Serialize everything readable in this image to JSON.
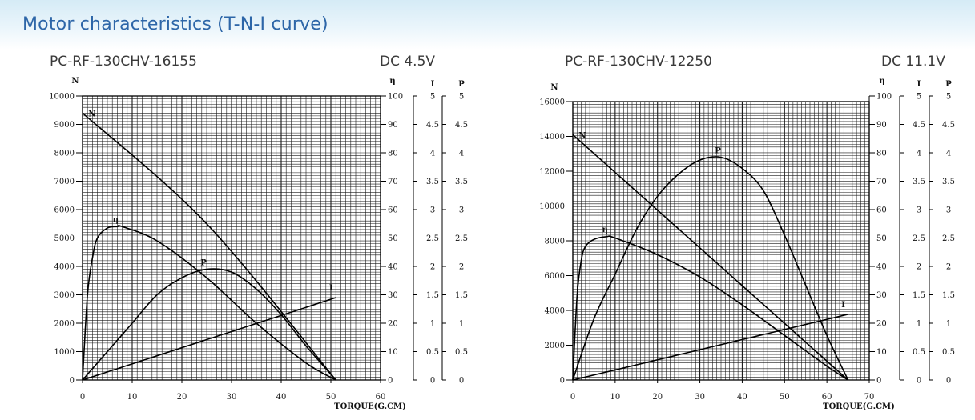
{
  "header": {
    "title": "Motor characteristics (T-N-I curve)"
  },
  "charts": [
    {
      "model": "PC-RF-130CHV-16155",
      "voltage": "DC 4.5V"
    },
    {
      "model": "PC-RF-130CHV-12250",
      "voltage": "DC 11.1V"
    }
  ],
  "chart_data": [
    {
      "type": "line",
      "title": "PC-RF-130CHV-16155",
      "subtitle": "DC 4.5V",
      "xlabel": "TORQUE(G.CM)",
      "ylabel": "N",
      "xlim": [
        0,
        60
      ],
      "x_ticks": [
        0,
        10,
        20,
        30,
        40,
        50,
        60
      ],
      "ylim": [
        0,
        10000
      ],
      "y_ticks": [
        0,
        1000,
        2000,
        3000,
        4000,
        5000,
        6000,
        7000,
        8000,
        9000,
        10000
      ],
      "right_axes": [
        {
          "label": "η",
          "ticks": [
            "0",
            "10",
            "20",
            "30",
            "40",
            "50",
            "60",
            "70",
            "80",
            "90",
            "100"
          ]
        },
        {
          "label": "I",
          "ticks": [
            "0",
            "0.5",
            "1",
            "1.5",
            "2",
            "2.5",
            "3",
            "3.5",
            "4",
            "4.5",
            "5"
          ]
        },
        {
          "label": "P",
          "ticks": [
            "0",
            "0.5",
            "1",
            "1.5",
            "2",
            "2.5",
            "3",
            "3.5",
            "4",
            "4.5",
            "5"
          ]
        }
      ],
      "grid": true,
      "series": [
        {
          "name": "N",
          "x": [
            0,
            25,
            51
          ],
          "y": [
            9400,
            5500,
            0
          ]
        },
        {
          "name": "η",
          "x": [
            0,
            1,
            2,
            3,
            5,
            7,
            8,
            15,
            25,
            35,
            45,
            51
          ],
          "y": [
            0,
            30,
            43,
            50,
            53.5,
            54,
            54,
            49,
            36,
            20,
            6,
            0
          ]
        },
        {
          "name": "P",
          "x": [
            0,
            5,
            10,
            15,
            20,
            25,
            30,
            35,
            40,
            45,
            50,
            51
          ],
          "y": [
            0,
            0.5,
            1.0,
            1.5,
            1.8,
            1.95,
            1.9,
            1.6,
            1.15,
            0.6,
            0.1,
            0
          ]
        },
        {
          "name": "I",
          "x": [
            0,
            51
          ],
          "y": [
            0,
            1.45
          ]
        }
      ]
    },
    {
      "type": "line",
      "title": "PC-RF-130CHV-12250",
      "subtitle": "DC 11.1V",
      "xlabel": "TORQUE(G.CM)",
      "ylabel": "N",
      "xlim": [
        0,
        70
      ],
      "x_ticks": [
        0,
        10,
        20,
        30,
        40,
        50,
        60,
        70
      ],
      "ylim": [
        0,
        16000
      ],
      "y_ticks": [
        0,
        2000,
        4000,
        6000,
        8000,
        10000,
        12000,
        14000,
        16000
      ],
      "right_axes": [
        {
          "label": "η",
          "ticks": [
            "0",
            "10",
            "20",
            "30",
            "40",
            "50",
            "60",
            "70",
            "80",
            "90",
            "100"
          ]
        },
        {
          "label": "I",
          "ticks": [
            "0",
            "0.5",
            "1",
            "1.5",
            "2",
            "2.5",
            "3",
            "3.5",
            "4",
            "4.5",
            "5"
          ]
        },
        {
          "label": "P",
          "ticks": [
            "0",
            "0.5",
            "1",
            "1.5",
            "2",
            "2.5",
            "3",
            "3.5",
            "4",
            "4.5",
            "5"
          ]
        }
      ],
      "grid": true,
      "series": [
        {
          "name": "N",
          "x": [
            0,
            65
          ],
          "y": [
            14100,
            0
          ]
        },
        {
          "name": "η",
          "x": [
            0,
            1,
            2,
            3,
            5,
            8,
            10,
            20,
            30,
            40,
            50,
            60,
            65
          ],
          "y": [
            0,
            30,
            43,
            48,
            50.5,
            51.5,
            51,
            45,
            37,
            27,
            16,
            5,
            0
          ]
        },
        {
          "name": "P",
          "x": [
            0,
            5,
            10,
            15,
            20,
            25,
            30,
            35,
            40,
            45,
            50,
            55,
            60,
            65
          ],
          "y": [
            0,
            1.1,
            1.9,
            2.7,
            3.3,
            3.7,
            3.95,
            4.0,
            3.8,
            3.4,
            2.6,
            1.7,
            0.8,
            0
          ]
        },
        {
          "name": "I",
          "x": [
            0,
            65
          ],
          "y": [
            0,
            1.18
          ]
        }
      ]
    }
  ]
}
